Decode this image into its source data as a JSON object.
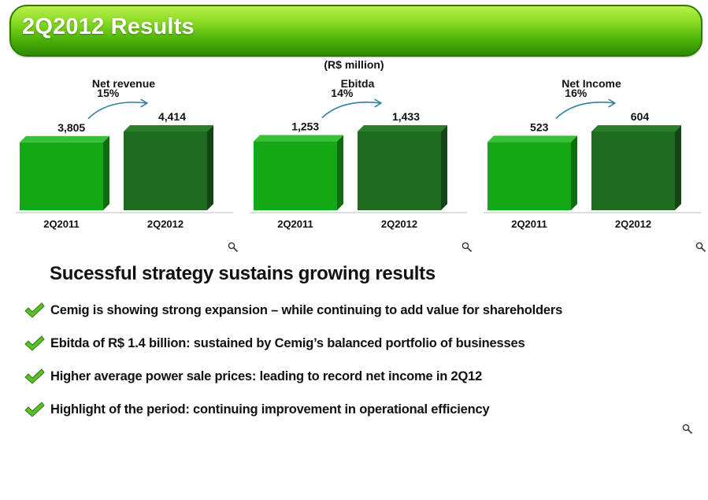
{
  "header": {
    "title": "2Q2012 Results"
  },
  "units_label": "(R$ million)",
  "chart_data": [
    {
      "type": "bar",
      "title": "Net revenue",
      "categories": [
        "2Q2011",
        "2Q2012"
      ],
      "values": [
        3805,
        4414
      ],
      "value_labels": [
        "3,805",
        "4,414"
      ],
      "growth_label": "15%"
    },
    {
      "type": "bar",
      "title": "Ebitda",
      "categories": [
        "2Q2011",
        "2Q2012"
      ],
      "values": [
        1253,
        1433
      ],
      "value_labels": [
        "1,253",
        "1,433"
      ],
      "growth_label": "14%"
    },
    {
      "type": "bar",
      "title": "Net Income",
      "categories": [
        "2Q2011",
        "2Q2012"
      ],
      "values": [
        523,
        604
      ],
      "value_labels": [
        "523",
        "604"
      ],
      "growth_label": "16%"
    }
  ],
  "headline": "Sucessful strategy sustains growing results",
  "bullets": [
    "Cemig is showing strong expansion – while continuing to add value for shareholders",
    "Ebitda of R$ 1.4 billion: sustained by Cemig’s balanced portfolio of businesses",
    "Higher average power sale prices: leading to record net income in 2Q12",
    "Highlight of the period: continuing improvement in operational efficiency"
  ],
  "colors": {
    "bar_2011": "#15a815",
    "bar_2012": "#1e6a1e",
    "arrow": "#2f7fa3",
    "check": "#5bbf2a",
    "banner": "#5cc010"
  },
  "icons": {
    "zoom": "magnifier-icon",
    "bullet": "checkmark-icon"
  }
}
